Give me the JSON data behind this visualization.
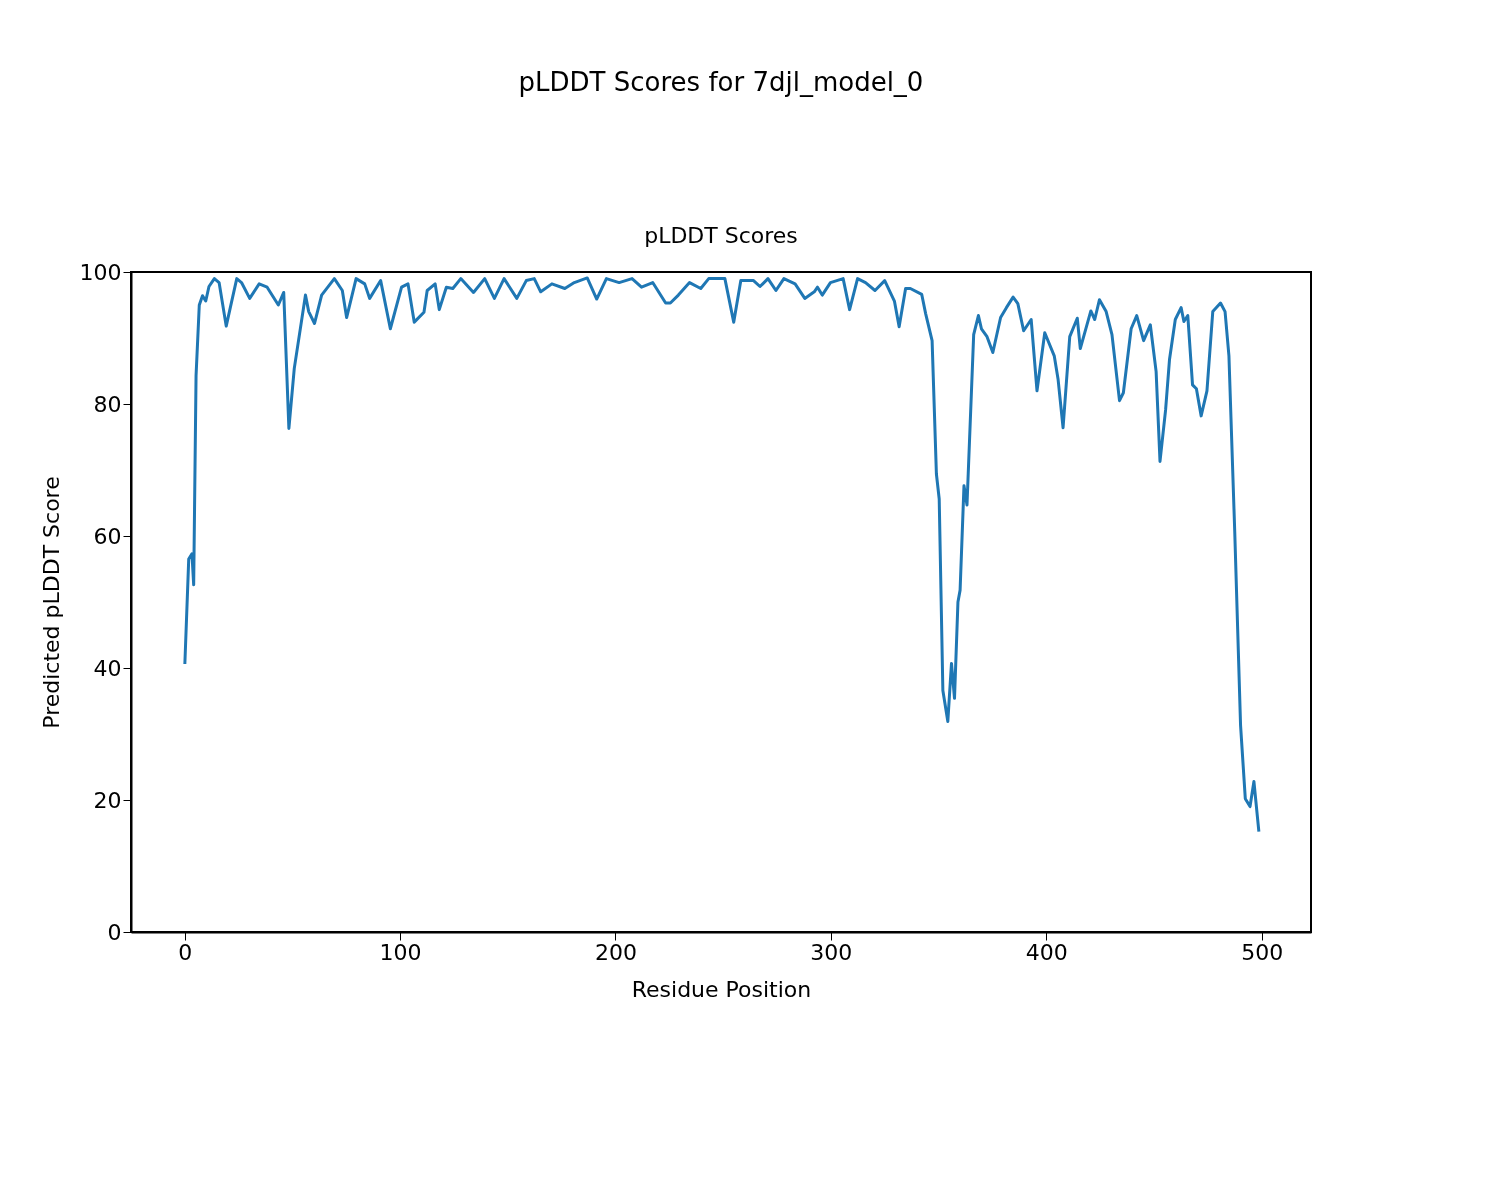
{
  "chart_data": {
    "type": "line",
    "title": "pLDDT Scores for 7djl_model_0",
    "subtitle": "pLDDT Scores",
    "xlabel": "Residue Position",
    "ylabel": "Predicted pLDDT Score",
    "xlim": [
      -24.9,
      522.9
    ],
    "xticks": [
      0,
      100,
      200,
      300,
      400,
      500
    ],
    "ylim": [
      0,
      100
    ],
    "yticks": [
      0,
      20,
      40,
      60,
      80,
      100
    ],
    "grid": false,
    "series": [
      {
        "color": "#1f77b4",
        "x": [
          0.1,
          1.9,
          3.4,
          4.2,
          5.3,
          6.8,
          8.3,
          9.8,
          11.3,
          13.8,
          16,
          19.3,
          21.2,
          24.2,
          26.4,
          30.2,
          34.6,
          38.3,
          43.5,
          46,
          48.4,
          50.9,
          56.1,
          57.6,
          60.3,
          63.6,
          69.5,
          73.2,
          75.2,
          79.6,
          83.6,
          85.9,
          91,
          95.5,
          100.7,
          103.7,
          106.6,
          111.1,
          112.6,
          116.3,
          118.2,
          121.5,
          124.5,
          128.2,
          134.1,
          139.3,
          143.8,
          148.3,
          154.2,
          158.6,
          162.3,
          165.3,
          170.5,
          176.5,
          180.9,
          186.9,
          191.3,
          195.8,
          201.7,
          207.7,
          212.1,
          217.3,
          223.3,
          225.5,
          229.2,
          234.4,
          239.6,
          243.3,
          250.8,
          254.9,
          258.2,
          264.1,
          267.1,
          270.8,
          274.5,
          278.2,
          283.4,
          287.9,
          292.3,
          293.8,
          296,
          299.8,
          305.7,
          308.7,
          312.4,
          316.1,
          320.5,
          325,
          329.5,
          331.7,
          334.7,
          336.9,
          342.2,
          344,
          347,
          349,
          350.3,
          352,
          354.3,
          356,
          357.4,
          359,
          360,
          361.8,
          363.2,
          366.3,
          368.5,
          369.9,
          372.5,
          375.2,
          378.8,
          381.5,
          384.6,
          386.8,
          389.5,
          393,
          395.7,
          399.3,
          403.7,
          405.5,
          407.8,
          410.9,
          414.4,
          415.8,
          420.7,
          422.5,
          424.7,
          427.8,
          430.5,
          434,
          435.8,
          439.4,
          442,
          445.2,
          448.3,
          451,
          452.8,
          455.4,
          457.2,
          459.9,
          462.6,
          463.9,
          465.7,
          467.9,
          469.7,
          471.9,
          474.6,
          477.3,
          480.9,
          483,
          484.8,
          487.5,
          490.2,
          492.4,
          494.6,
          496.4,
          498.7
        ],
        "values": [
          40.6,
          56.5,
          57.3,
          52.6,
          84.3,
          95,
          96.4,
          95.6,
          97.8,
          99,
          98.4,
          91.8,
          94.6,
          99,
          98.4,
          96,
          98.2,
          97.7,
          95,
          96.9,
          76.3,
          85.4,
          96.5,
          94,
          92.2,
          96.5,
          99,
          97.2,
          93.1,
          99,
          98.2,
          96,
          98.7,
          91.4,
          97.7,
          98.2,
          92.4,
          93.9,
          97.2,
          98.2,
          94.3,
          97.7,
          97.5,
          99,
          96.9,
          99,
          96,
          99,
          96,
          98.7,
          99,
          97,
          98.2,
          97.5,
          98.4,
          99.1,
          95.9,
          99,
          98.4,
          99,
          97.7,
          98.4,
          95.3,
          95.3,
          96.5,
          98.4,
          97.5,
          99,
          99,
          92.4,
          98.7,
          98.7,
          97.8,
          99,
          97.2,
          99,
          98.2,
          96,
          97,
          97.7,
          96.5,
          98.4,
          99,
          94.3,
          99,
          98.4,
          97.2,
          98.7,
          95.6,
          91.7,
          97.5,
          97.5,
          96.6,
          93.7,
          89.6,
          69.4,
          65.6,
          36.6,
          31.9,
          40.7,
          35.4,
          50,
          51.8,
          67.6,
          64.7,
          90.5,
          93.4,
          91.4,
          90.2,
          87.8,
          93.1,
          94.6,
          96.2,
          95.2,
          91.1,
          92.8,
          82,
          90.8,
          87.3,
          83.7,
          76.4,
          90.2,
          93,
          88.4,
          94.1,
          92.8,
          95.8,
          94,
          90.5,
          80.5,
          81.7,
          91.4,
          93.4,
          89.6,
          92,
          84.9,
          71.3,
          79.1,
          86.7,
          92.8,
          94.6,
          92.5,
          93.4,
          82.9,
          82.3,
          78.2,
          82,
          94,
          95.3,
          94,
          87.3,
          60.6,
          31.3,
          20.2,
          19,
          22.8,
          15.2
        ]
      }
    ]
  }
}
